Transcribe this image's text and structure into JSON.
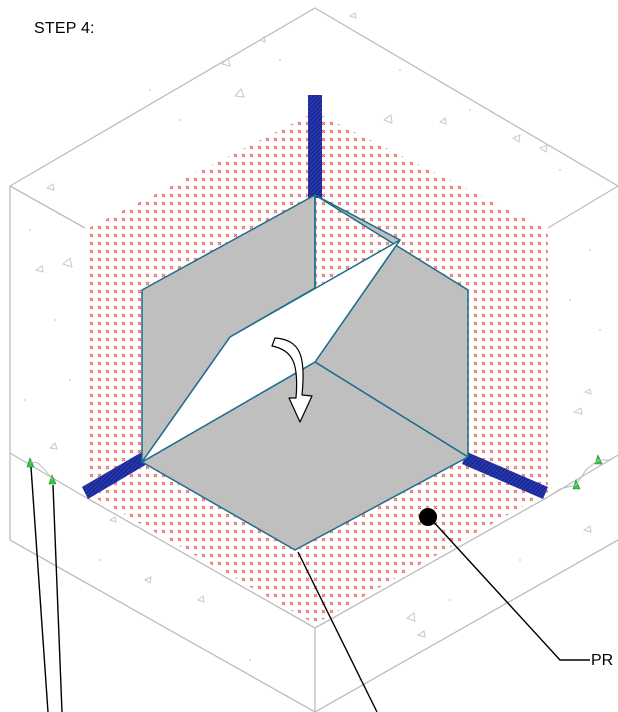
{
  "title": "STEP 4:",
  "callouts": [
    {
      "label": "PR"
    }
  ],
  "colors": {
    "concrete_outline": "#bdbdbd",
    "pattern_dots": "#e0625a",
    "sealant_strip": "#1b2a9a",
    "panel_fill": "#c0c0c0",
    "panel_edge": "#1b6e8a",
    "marker_green": "#2ecc40",
    "leader": "#000000"
  }
}
